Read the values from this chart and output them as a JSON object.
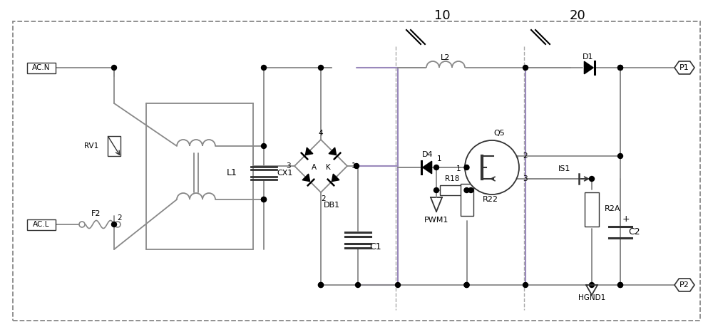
{
  "bg_color": "#ffffff",
  "line_color": "#888888",
  "dark_color": "#333333",
  "figsize": [
    10.0,
    4.66
  ],
  "dpi": 100,
  "label_10": "10",
  "label_20": "20",
  "label_ACN": "AC.N",
  "label_ACL": "AC.L",
  "label_L1": "L1",
  "label_L2": "L2",
  "label_RV1": "RV1",
  "label_CX1": "CX1",
  "label_DB1": "DB1",
  "label_C1": "C1",
  "label_C2": "C2",
  "label_D1": "D1",
  "label_D4": "D4",
  "label_Q5": "Q5",
  "label_F2": "F2",
  "label_R18": "R18",
  "label_R22": "R22",
  "label_R2A": "R2A",
  "label_PWM1": "PWM1",
  "label_IS1": "IS1",
  "label_HGND1": "HGND1",
  "label_P1": "P1",
  "label_P2": "P2",
  "label_2": "2",
  "label_1": "1",
  "label_3": "3",
  "label_4": "4",
  "label_A": "A",
  "label_K": "K",
  "purple_color": "#9988bb",
  "outer_border": [
    18,
    30,
    964,
    420
  ]
}
